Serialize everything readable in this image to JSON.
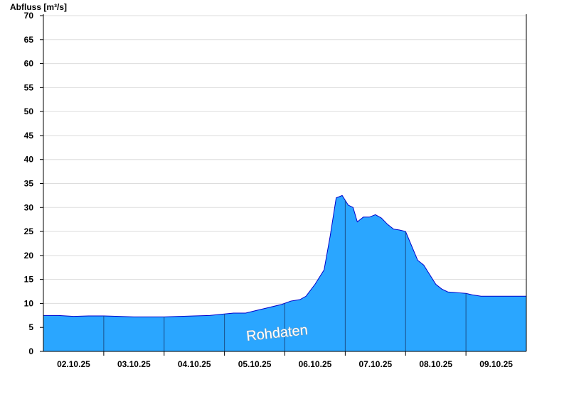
{
  "chart_data": {
    "type": "area",
    "title": "",
    "ylabel": "Abfluss [m³/s]",
    "xlabel": "",
    "watermark": "Rohdaten",
    "ylim": [
      0,
      70
    ],
    "yticks": [
      0,
      5,
      10,
      15,
      20,
      25,
      30,
      35,
      40,
      45,
      50,
      55,
      60,
      65,
      70
    ],
    "x_range_days": [
      1.75,
      9.75
    ],
    "x_ticks": [
      {
        "day": 2.25,
        "label": "02.10.25"
      },
      {
        "day": 3.25,
        "label": "03.10.25"
      },
      {
        "day": 4.25,
        "label": "04.10.25"
      },
      {
        "day": 5.25,
        "label": "05.10.25"
      },
      {
        "day": 6.25,
        "label": "06.10.25"
      },
      {
        "day": 7.25,
        "label": "07.10.25"
      },
      {
        "day": 8.25,
        "label": "08.10.25"
      },
      {
        "day": 9.25,
        "label": "09.10.25"
      }
    ],
    "day_dividers": [
      2.75,
      3.75,
      4.75,
      5.75,
      6.75,
      7.75,
      8.75
    ],
    "grid": true,
    "colors": {
      "fill": "#2aa6ff",
      "line": "#0000cc",
      "divider": "#1a4f8a",
      "grid": "#dddddd"
    },
    "series": [
      {
        "x": [
          1.75,
          2.0,
          2.25,
          2.5,
          2.75,
          3.0,
          3.25,
          3.5,
          3.75,
          4.0,
          4.25,
          4.5,
          4.75,
          4.9,
          5.1,
          5.3,
          5.5,
          5.7,
          5.85,
          6.0,
          6.1,
          6.25,
          6.4,
          6.5,
          6.6,
          6.7,
          6.8,
          6.88,
          6.95,
          7.05,
          7.15,
          7.25,
          7.35,
          7.45,
          7.55,
          7.65,
          7.75,
          7.85,
          7.95,
          8.05,
          8.15,
          8.25,
          8.35,
          8.45,
          8.55,
          8.65,
          8.75,
          8.85,
          9.0,
          9.25,
          9.5,
          9.75
        ],
        "y": [
          7.5,
          7.5,
          7.3,
          7.4,
          7.4,
          7.3,
          7.2,
          7.2,
          7.2,
          7.3,
          7.4,
          7.5,
          7.8,
          8.0,
          8.0,
          8.6,
          9.2,
          9.8,
          10.5,
          10.8,
          11.5,
          14.0,
          17.0,
          24.0,
          32.0,
          32.5,
          30.5,
          30.0,
          27.0,
          28.0,
          28.0,
          28.5,
          27.8,
          26.5,
          25.5,
          25.3,
          25.0,
          22.0,
          19.0,
          18.0,
          16.0,
          14.0,
          13.0,
          12.4,
          12.3,
          12.2,
          12.1,
          11.8,
          11.5,
          11.5,
          11.5,
          11.5
        ]
      }
    ]
  }
}
